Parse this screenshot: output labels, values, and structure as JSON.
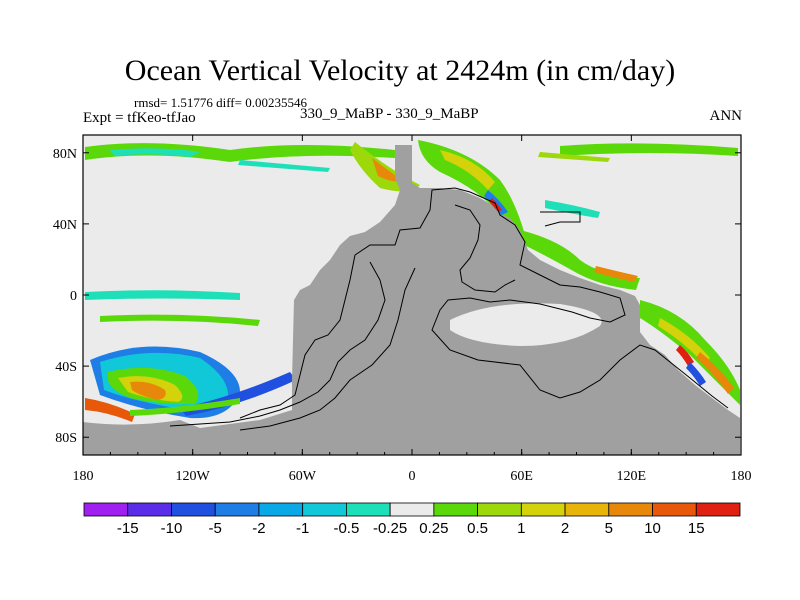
{
  "header": {
    "title": "Ocean Vertical Velocity at 2424m (in cm/day)",
    "stats": "rmsd= 1.51776 diff= 0.00235546",
    "experiment": "Expt = tfKeo-tfJao",
    "center_label": "330_9_MaBP - 330_9_MaBP",
    "season": "ANN"
  },
  "chart_data": {
    "type": "heatmap",
    "x_ticks": [
      "180",
      "120W",
      "60W",
      "0",
      "60E",
      "120E",
      "180"
    ],
    "x_tick_values": [
      -180,
      -120,
      -60,
      0,
      60,
      120,
      180
    ],
    "y_ticks": [
      "80N",
      "40N",
      "0",
      "40S",
      "80S"
    ],
    "y_tick_values": [
      80,
      40,
      0,
      -40,
      -80
    ],
    "xlim": [
      -180,
      180
    ],
    "ylim": [
      -90,
      90
    ],
    "colorbar": {
      "labels": [
        "-15",
        "-10",
        "-5",
        "-2",
        "-1",
        "-0.5",
        "-0.25",
        "0.25",
        "0.5",
        "1",
        "2",
        "5",
        "10",
        "15"
      ],
      "colors": [
        "#a020f0",
        "#5a2ee8",
        "#2050e0",
        "#1e7ee6",
        "#0aa8e6",
        "#10c8d8",
        "#1ee0b8",
        "#ebebeb",
        "#5ad80a",
        "#9cd80a",
        "#d4d20a",
        "#e8b40a",
        "#e8880a",
        "#e8580a",
        "#e02010"
      ]
    },
    "land_color": "#a0a0a0",
    "near_zero_color": "#ebebeb"
  }
}
